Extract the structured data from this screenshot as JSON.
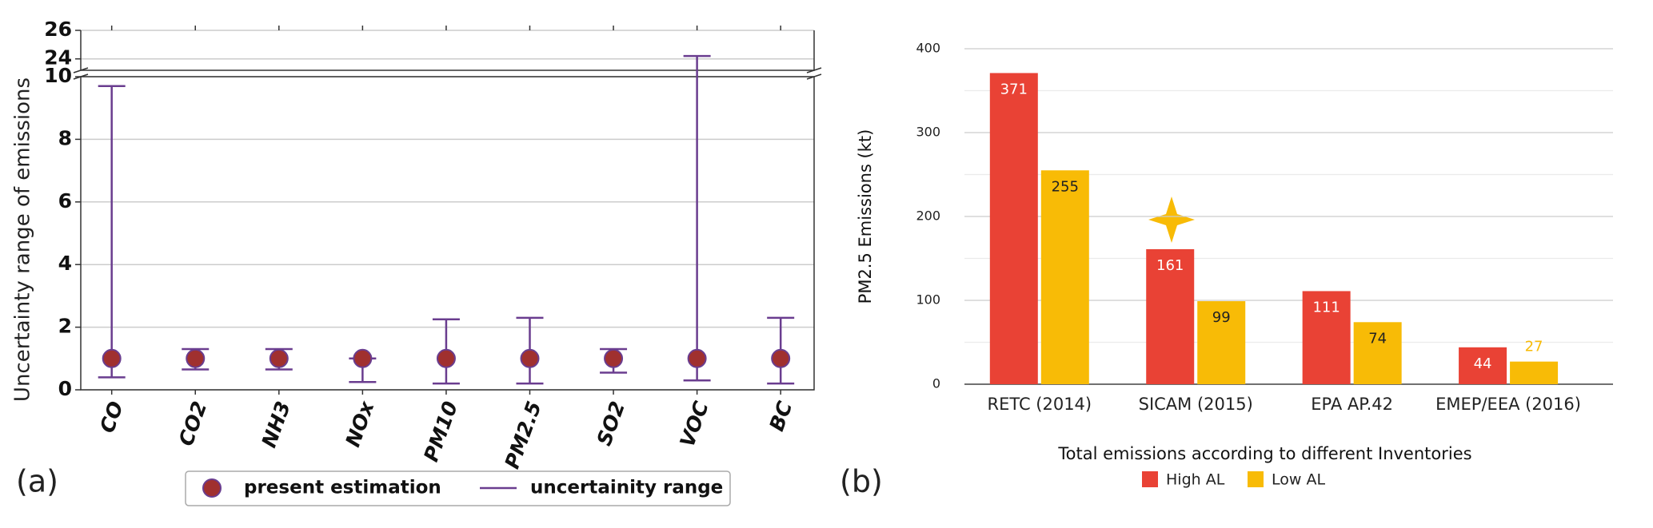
{
  "chart_data": [
    {
      "type": "errorbar",
      "panel_label": "(a)",
      "ylabel": "Uncertainty range of emissions",
      "categories": [
        "CO",
        "CO2",
        "NH3",
        "NOx",
        "PM10",
        "PM2.5",
        "SO2",
        "VOC",
        "BC"
      ],
      "series": [
        {
          "name": "present estimation",
          "color": "#a0302f",
          "values": [
            1,
            1,
            1,
            1,
            1,
            1,
            1,
            1,
            1
          ]
        },
        {
          "name": "uncertainity range",
          "color": "#6a3d8f",
          "low": [
            0.4,
            0.65,
            0.65,
            0.25,
            0.2,
            0.2,
            0.55,
            0.3,
            0.2
          ],
          "high": [
            9.7,
            1.3,
            1.3,
            1.0,
            2.25,
            2.3,
            1.3,
            24.2,
            2.3
          ]
        }
      ],
      "ylim": [
        0,
        10
      ],
      "yticks": [
        0,
        2,
        4,
        6,
        8,
        10
      ],
      "ylim_upper": [
        23.2,
        26
      ],
      "yticks_upper": [
        24,
        26
      ],
      "grid": true
    },
    {
      "type": "bar",
      "panel_label": "(b)",
      "ylabel": "PM2.5 Emissions (kt)",
      "xlabel": "Total emissions according to different  Inventories",
      "categories": [
        "RETC (2014)",
        "SICAM (2015)",
        "EPA   AP.42",
        "EMEP/EEA (2016)"
      ],
      "series": [
        {
          "name": "High AL",
          "color": "#e94235",
          "values": [
            371,
            161,
            111,
            44
          ]
        },
        {
          "name": "Low AL",
          "color": "#f8bb06",
          "values": [
            255,
            99,
            74,
            27
          ]
        }
      ],
      "ylim": [
        0,
        400
      ],
      "yticks": [
        0,
        100,
        200,
        300,
        400
      ],
      "minor_yticks": [
        50,
        150,
        250,
        350
      ],
      "grid": true
    }
  ]
}
